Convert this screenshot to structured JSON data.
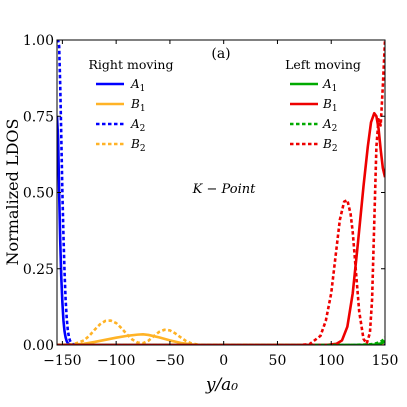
{
  "chart_data": {
    "type": "line",
    "panel_label": "(a)",
    "annotation": "K − Point",
    "xlabel": "y/a₀",
    "ylabel": "Normalized LDOS",
    "xlim": [
      -155,
      150
    ],
    "ylim": [
      0,
      1.0
    ],
    "x_ticks": [
      -150,
      -100,
      -50,
      0,
      50,
      100,
      150
    ],
    "x_tick_labels": [
      "−150",
      "−100",
      "−50",
      "0",
      "50",
      "100",
      "150"
    ],
    "y_ticks": [
      0.0,
      0.25,
      0.5,
      0.75,
      1.0
    ],
    "y_tick_labels": [
      "0.00",
      "0.25",
      "0.50",
      "0.75",
      "1.00"
    ],
    "grid": false,
    "legends": [
      {
        "title": "Right moving",
        "position": "top-left",
        "entries": [
          {
            "label_base": "A",
            "label_sub": "1",
            "series_index": 0
          },
          {
            "label_base": "B",
            "label_sub": "1",
            "series_index": 1
          },
          {
            "label_base": "A",
            "label_sub": "2",
            "series_index": 2
          },
          {
            "label_base": "B",
            "label_sub": "2",
            "series_index": 3
          }
        ]
      },
      {
        "title": "Left moving",
        "position": "top-right",
        "entries": [
          {
            "label_base": "A",
            "label_sub": "1",
            "series_index": 4
          },
          {
            "label_base": "B",
            "label_sub": "1",
            "series_index": 5
          },
          {
            "label_base": "A",
            "label_sub": "2",
            "series_index": 6
          },
          {
            "label_base": "B",
            "label_sub": "2",
            "series_index": 7
          }
        ]
      }
    ],
    "series": [
      {
        "group": "Right moving",
        "color": "#0000ff",
        "style": "solid",
        "x": [
          -155,
          -154,
          -153,
          -152,
          -151,
          -150,
          -149,
          -148,
          -147,
          -146,
          -145,
          -144,
          -142,
          -140,
          -135,
          -100,
          0,
          150
        ],
        "y": [
          0.75,
          0.68,
          0.5,
          0.34,
          0.22,
          0.14,
          0.08,
          0.045,
          0.025,
          0.013,
          0.006,
          0.003,
          0.001,
          0.0,
          0.0,
          0.0,
          0.0,
          0.0
        ]
      },
      {
        "group": "Right moving",
        "color": "#ffb326",
        "style": "solid",
        "x": [
          -155,
          -140,
          -130,
          -120,
          -110,
          -100,
          -90,
          -80,
          -75,
          -70,
          -60,
          -50,
          -40,
          -30,
          -20,
          -10,
          150
        ],
        "y": [
          0.0,
          0.001,
          0.004,
          0.01,
          0.017,
          0.024,
          0.03,
          0.034,
          0.035,
          0.033,
          0.025,
          0.015,
          0.007,
          0.002,
          0.0,
          0.0,
          0.0
        ]
      },
      {
        "group": "Right moving",
        "color": "#0000ff",
        "style": "dotted",
        "x": [
          -155,
          -154,
          -153,
          -152,
          -151,
          -150,
          -149,
          -148,
          -147,
          -146,
          -145,
          -144,
          -143,
          -142,
          -140,
          -135,
          0,
          150
        ],
        "y": [
          1.0,
          1.0,
          0.98,
          0.85,
          0.68,
          0.5,
          0.36,
          0.24,
          0.15,
          0.09,
          0.05,
          0.028,
          0.015,
          0.008,
          0.002,
          0.0,
          0.0,
          0.0
        ]
      },
      {
        "group": "Right moving",
        "color": "#ffb326",
        "style": "dotted",
        "x": [
          -155,
          -140,
          -130,
          -125,
          -120,
          -115,
          -110,
          -105,
          -100,
          -95,
          -90,
          -85,
          -80,
          -75,
          -70,
          -65,
          -60,
          -55,
          -50,
          -45,
          -40,
          -35,
          -30,
          -25,
          -20,
          150
        ],
        "y": [
          0.0,
          0.002,
          0.015,
          0.03,
          0.05,
          0.068,
          0.079,
          0.08,
          0.072,
          0.055,
          0.035,
          0.018,
          0.008,
          0.006,
          0.014,
          0.029,
          0.043,
          0.05,
          0.048,
          0.038,
          0.025,
          0.013,
          0.005,
          0.002,
          0.0,
          0.0
        ]
      },
      {
        "group": "Left moving",
        "color": "#00aa00",
        "style": "solid",
        "x": [
          -155,
          0,
          100,
          120,
          135,
          142,
          146,
          148,
          150
        ],
        "y": [
          0.0,
          0.0,
          0.0,
          0.0,
          0.0,
          0.002,
          0.005,
          0.008,
          0.012
        ]
      },
      {
        "group": "Left moving",
        "color": "#ee0000",
        "style": "solid",
        "x": [
          -155,
          0,
          95,
          105,
          110,
          115,
          120,
          125,
          130,
          134,
          137,
          140,
          142,
          144,
          146,
          148,
          150
        ],
        "y": [
          0.0,
          0.0,
          0.0,
          0.004,
          0.015,
          0.06,
          0.17,
          0.34,
          0.52,
          0.65,
          0.73,
          0.76,
          0.75,
          0.71,
          0.64,
          0.58,
          0.55
        ]
      },
      {
        "group": "Left moving",
        "color": "#00aa00",
        "style": "dotted",
        "x": [
          -155,
          0,
          100,
          120,
          135,
          140,
          144,
          147,
          149,
          150
        ],
        "y": [
          0.0,
          0.0,
          0.0,
          0.0,
          0.002,
          0.004,
          0.008,
          0.013,
          0.02,
          0.025
        ]
      },
      {
        "group": "Left moving",
        "color": "#ee0000",
        "style": "dotted",
        "x": [
          -155,
          0,
          70,
          80,
          90,
          95,
          100,
          105,
          108,
          112,
          115,
          118,
          120,
          123,
          126,
          130,
          133,
          136,
          138,
          140,
          142,
          144,
          146,
          148,
          150
        ],
        "y": [
          0.0,
          0.0,
          0.0,
          0.003,
          0.03,
          0.08,
          0.17,
          0.32,
          0.41,
          0.47,
          0.475,
          0.43,
          0.37,
          0.24,
          0.11,
          0.02,
          0.005,
          0.04,
          0.15,
          0.4,
          0.65,
          0.74,
          0.72,
          0.85,
          1.0
        ]
      }
    ]
  }
}
